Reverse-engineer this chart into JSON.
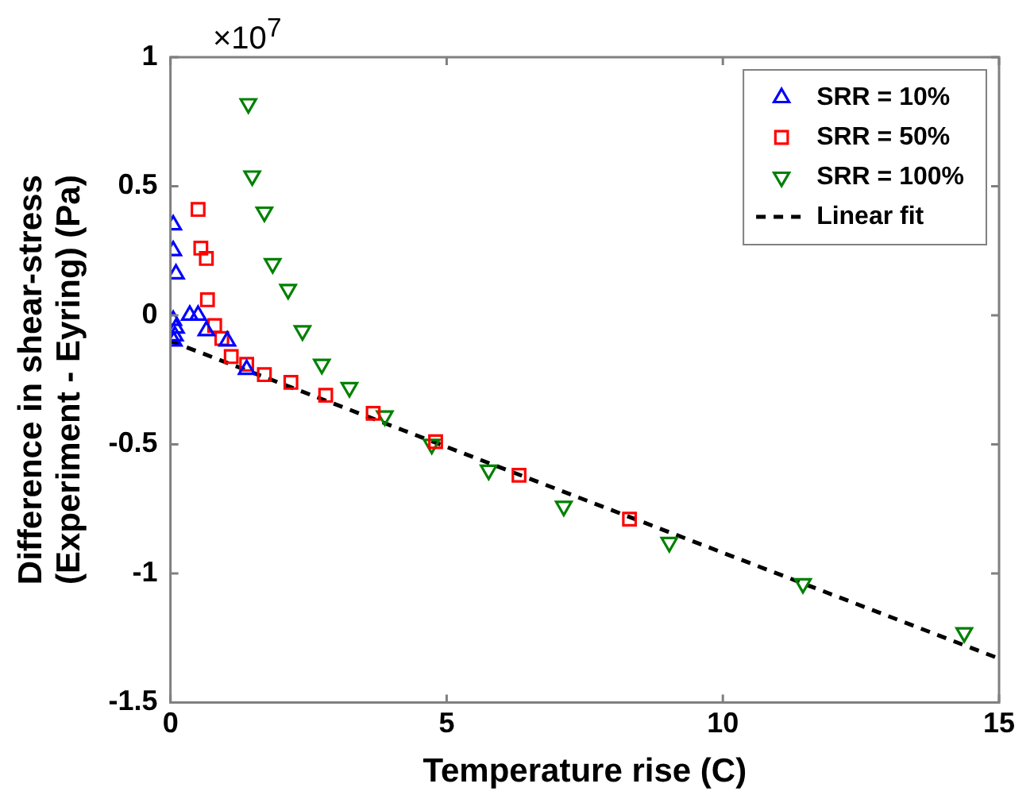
{
  "chart_data": {
    "type": "scatter",
    "xlabel": "Temperature rise (C)",
    "ylabel": "Difference in shear-stress\n(Experiment - Eyring) (Pa)",
    "annotations": [
      "×10$^{7}$"
    ],
    "xlim": [
      0,
      15
    ],
    "xticks": [
      0,
      5,
      10,
      15
    ],
    "ylim": [
      -1.5,
      1
    ],
    "yticks": [
      -1.5,
      -1,
      -0.5,
      0,
      0.5,
      1
    ],
    "grid": false,
    "legend": "top right",
    "series": [
      {
        "name": "SRR = 10%",
        "color": "#0000ff",
        "marker": "triangle",
        "x": [
          0.05,
          0.05,
          0.1,
          0.05,
          0.1,
          0.08,
          0.06,
          0.35,
          0.5,
          0.65,
          1.03,
          1.38
        ],
        "values": [
          0.35,
          0.25,
          0.16,
          -0.02,
          -0.05,
          -0.08,
          -0.1,
          0,
          0,
          -0.06,
          -0.1,
          -0.21
        ]
      },
      {
        "name": "SRR = 50%",
        "color": "#ff0000",
        "marker": "square",
        "x": [
          0.5,
          0.55,
          0.65,
          0.67,
          0.8,
          0.93,
          1.1,
          1.38,
          1.7,
          2.18,
          2.81,
          3.67,
          4.8,
          6.31,
          8.31
        ],
        "values": [
          0.41,
          0.26,
          0.22,
          0.06,
          -0.04,
          -0.09,
          -0.16,
          -0.19,
          -0.23,
          -0.26,
          -0.31,
          -0.38,
          -0.49,
          -0.62,
          -0.79
        ]
      },
      {
        "name": "SRR = 100%",
        "color": "#008000",
        "marker": "triangle-down",
        "x": [
          1.41,
          1.48,
          1.7,
          1.85,
          2.13,
          2.39,
          2.74,
          3.24,
          3.88,
          4.73,
          5.76,
          7.12,
          9.03,
          11.45,
          14.37
        ],
        "values": [
          0.82,
          0.54,
          0.4,
          0.2,
          0.1,
          -0.06,
          -0.19,
          -0.28,
          -0.39,
          -0.5,
          -0.6,
          -0.74,
          -0.88,
          -1.04,
          -1.23
        ]
      },
      {
        "name": "Linear fit",
        "type": "line",
        "color": "#000000",
        "marker": "none",
        "line_style": "dashed",
        "x": [
          0,
          15
        ],
        "values": [
          -0.1,
          -1.33
        ]
      }
    ]
  }
}
